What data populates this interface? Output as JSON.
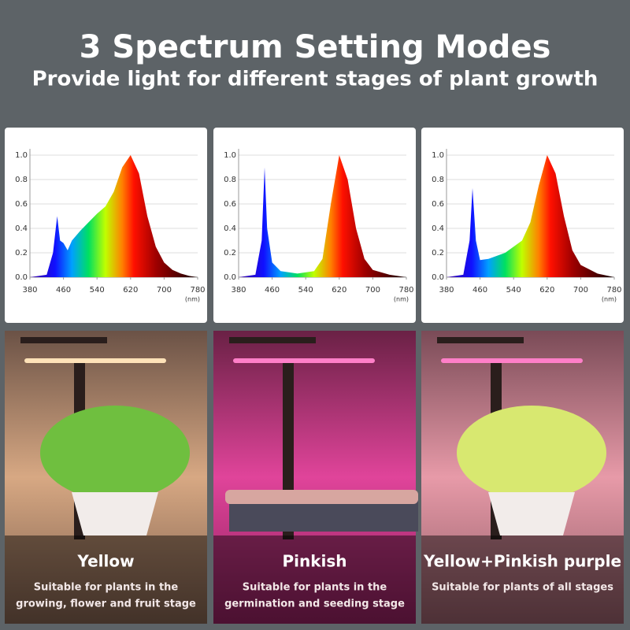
{
  "header": {
    "title": "3 Spectrum Setting Modes",
    "subtitle": "Provide light for different stages of plant growth"
  },
  "chart_data": [
    {
      "type": "area",
      "x_label": "(nm)",
      "x": [
        380,
        420,
        435,
        445,
        452,
        460,
        470,
        480,
        500,
        520,
        540,
        560,
        580,
        600,
        620,
        640,
        660,
        680,
        700,
        720,
        740,
        760,
        780
      ],
      "values": [
        0,
        0.02,
        0.2,
        0.5,
        0.3,
        0.28,
        0.22,
        0.3,
        0.38,
        0.45,
        0.52,
        0.58,
        0.7,
        0.9,
        1.0,
        0.85,
        0.5,
        0.25,
        0.12,
        0.06,
        0.03,
        0.01,
        0
      ],
      "xlim": [
        380,
        780
      ],
      "ylim": [
        0,
        1
      ],
      "xticks": [
        380,
        460,
        540,
        620,
        700,
        780
      ],
      "yticks": [
        {
          "value": 0,
          "label": "0.0"
        },
        0.2,
        0.4,
        0.6,
        0.8,
        {
          "value": 1,
          "label": "1.0"
        }
      ],
      "grid": true
    },
    {
      "type": "area",
      "x_label": "(nm)",
      "x": [
        380,
        420,
        435,
        442,
        448,
        460,
        480,
        520,
        560,
        580,
        600,
        620,
        640,
        660,
        680,
        700,
        740,
        780
      ],
      "values": [
        0,
        0.02,
        0.3,
        0.9,
        0.4,
        0.12,
        0.05,
        0.03,
        0.05,
        0.15,
        0.6,
        1.0,
        0.8,
        0.4,
        0.15,
        0.06,
        0.02,
        0
      ],
      "xlim": [
        380,
        780
      ],
      "ylim": [
        0,
        1
      ],
      "xticks": [
        380,
        460,
        540,
        620,
        700,
        780
      ],
      "yticks": [
        {
          "value": 0,
          "label": "0.0"
        },
        0.2,
        0.4,
        0.6,
        0.8,
        {
          "value": 1,
          "label": "1.0"
        }
      ],
      "grid": true
    },
    {
      "type": "area",
      "x_label": "(nm)",
      "x": [
        380,
        420,
        435,
        442,
        450,
        460,
        480,
        520,
        560,
        580,
        600,
        620,
        640,
        660,
        680,
        700,
        740,
        780
      ],
      "values": [
        0,
        0.02,
        0.3,
        0.73,
        0.3,
        0.14,
        0.15,
        0.2,
        0.3,
        0.45,
        0.75,
        1.0,
        0.85,
        0.5,
        0.22,
        0.1,
        0.03,
        0
      ],
      "xlim": [
        380,
        780
      ],
      "ylim": [
        0,
        1
      ],
      "xticks": [
        380,
        460,
        540,
        620,
        700,
        780
      ],
      "yticks": [
        {
          "value": 0,
          "label": "0.0"
        },
        0.2,
        0.4,
        0.6,
        0.8,
        {
          "value": 1,
          "label": "1.0"
        }
      ],
      "grid": true
    }
  ],
  "panels": [
    {
      "mode": "Yellow",
      "description": [
        "Suitable for plants in the",
        "growing,  flower and fruit stage"
      ]
    },
    {
      "mode": "Pinkish",
      "description": [
        "Suitable for plants in the",
        "germination and seeding stage"
      ]
    },
    {
      "mode": "Yellow+Pinkish purple",
      "description": [
        "Suitable for plants of all stages"
      ]
    }
  ]
}
